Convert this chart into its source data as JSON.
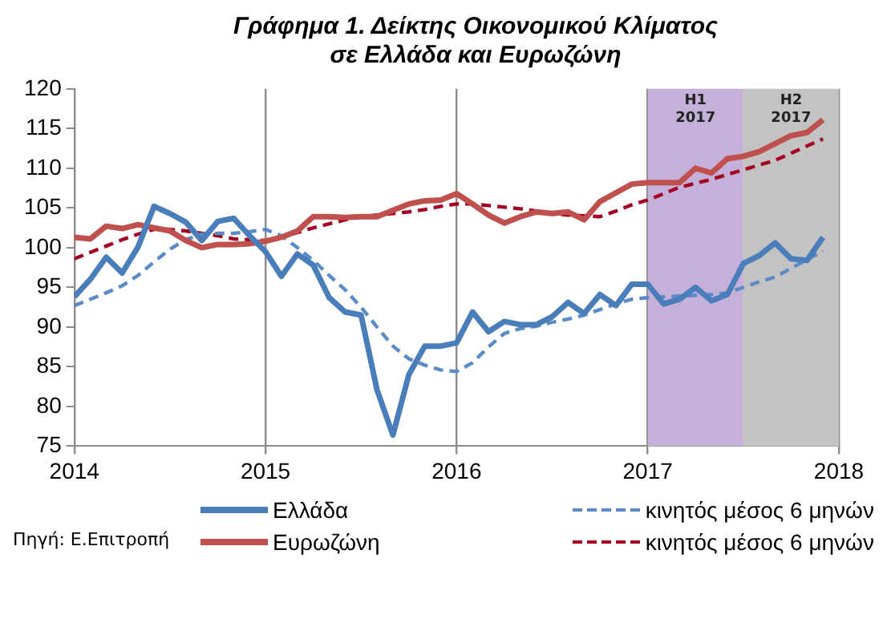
{
  "chart_data": {
    "type": "line",
    "title": "Γράφημα 1. Δείκτης Οικονομικού Κλίματος σε Ελλάδα και Ευρωζώνη",
    "x": [
      "2014-01",
      "2014-02",
      "2014-03",
      "2014-04",
      "2014-05",
      "2014-06",
      "2014-07",
      "2014-08",
      "2014-09",
      "2014-10",
      "2014-11",
      "2014-12",
      "2015-01",
      "2015-02",
      "2015-03",
      "2015-04",
      "2015-05",
      "2015-06",
      "2015-07",
      "2015-08",
      "2015-09",
      "2015-10",
      "2015-11",
      "2015-12",
      "2016-01",
      "2016-02",
      "2016-03",
      "2016-04",
      "2016-05",
      "2016-06",
      "2016-07",
      "2016-08",
      "2016-09",
      "2016-10",
      "2016-11",
      "2016-12",
      "2017-01",
      "2017-02",
      "2017-03",
      "2017-04",
      "2017-05",
      "2017-06",
      "2017-07",
      "2017-08",
      "2017-09",
      "2017-10",
      "2017-11",
      "2017-12"
    ],
    "series": [
      {
        "name": "Ελλάδα",
        "color": "#4a7ebb",
        "line_style": "solid",
        "values": [
          93.8,
          96.0,
          98.8,
          96.8,
          100.1,
          105.2,
          104.3,
          103.2,
          100.9,
          103.3,
          103.7,
          101.5,
          99.5,
          96.4,
          99.2,
          97.8,
          93.7,
          91.9,
          91.5,
          82.1,
          76.4,
          84.0,
          87.6,
          87.6,
          88.0,
          91.9,
          89.4,
          90.7,
          90.3,
          90.3,
          91.3,
          93.1,
          91.7,
          94.1,
          92.7,
          95.4,
          95.4,
          92.9,
          93.5,
          95.0,
          93.3,
          94.1,
          98.0,
          99.0,
          100.6,
          98.6,
          98.4,
          101.3
        ]
      },
      {
        "name": "Ευρωζώνη",
        "color": "#c0504d",
        "line_style": "solid",
        "values": [
          101.3,
          101.1,
          102.7,
          102.4,
          102.9,
          102.5,
          102.1,
          100.9,
          100.0,
          100.4,
          100.4,
          100.5,
          100.8,
          101.3,
          102.1,
          103.9,
          103.9,
          103.8,
          103.9,
          103.9,
          104.7,
          105.5,
          105.9,
          106.0,
          106.8,
          105.5,
          104.1,
          103.1,
          103.9,
          104.5,
          104.3,
          104.5,
          103.5,
          105.8,
          106.9,
          108.0,
          108.2,
          108.2,
          108.2,
          110.0,
          109.4,
          111.2,
          111.5,
          112.1,
          113.1,
          114.1,
          114.5,
          116.1
        ]
      },
      {
        "name": "κινητός μέσος 6 μηνών",
        "color": "#5b8bc6",
        "line_style": "dashed",
        "values": [
          92.7,
          93.5,
          94.3,
          95.2,
          96.5,
          98.2,
          99.8,
          101.0,
          101.7,
          101.8,
          101.8,
          102.0,
          102.3,
          101.5,
          100.0,
          98.4,
          96.5,
          94.7,
          92.5,
          90.0,
          87.6,
          86.0,
          85.2,
          84.6,
          84.4,
          85.5,
          87.5,
          89.2,
          89.8,
          90.1,
          90.6,
          91.0,
          91.5,
          92.2,
          92.9,
          93.5,
          93.7,
          93.8,
          93.9,
          94.0,
          94.1,
          94.3,
          95.0,
          95.7,
          96.3,
          97.4,
          98.5,
          99.6
        ]
      },
      {
        "name": "κινητός μέσος 6 μηνών",
        "color": "#a50021",
        "line_style": "dashed",
        "values": [
          98.6,
          99.4,
          100.2,
          101.0,
          101.7,
          102.3,
          102.3,
          102.1,
          101.8,
          101.5,
          101.1,
          101.0,
          100.9,
          101.3,
          101.9,
          102.5,
          103.0,
          103.5,
          103.9,
          104.1,
          104.3,
          104.5,
          104.8,
          105.2,
          105.5,
          105.5,
          105.3,
          105.1,
          104.9,
          104.6,
          104.3,
          104.1,
          104.0,
          103.9,
          104.6,
          105.4,
          106.0,
          106.8,
          107.6,
          108.1,
          108.6,
          109.2,
          109.8,
          110.4,
          111.0,
          111.9,
          112.8,
          113.7
        ]
      }
    ],
    "xlim": [
      "2014",
      "2018"
    ],
    "xticks": [
      "2014",
      "2015",
      "2016",
      "2017",
      "2018"
    ],
    "ylim": [
      75,
      120
    ],
    "yticks": [
      75,
      80,
      85,
      90,
      95,
      100,
      105,
      110,
      115,
      120
    ],
    "bands": [
      {
        "axis": "x",
        "from": "2017-01",
        "to": "2017-07",
        "label": "H1 2017",
        "color": "#c5b0d9"
      },
      {
        "axis": "x",
        "from": "2017-07",
        "to": "2018-01",
        "label": "H2 2017",
        "color": "#c3c3c3"
      }
    ],
    "grid": "x",
    "legend": "bottom",
    "marker": "none",
    "annotations": [
      "Πηγή: Ε.Επιτροπή"
    ]
  }
}
